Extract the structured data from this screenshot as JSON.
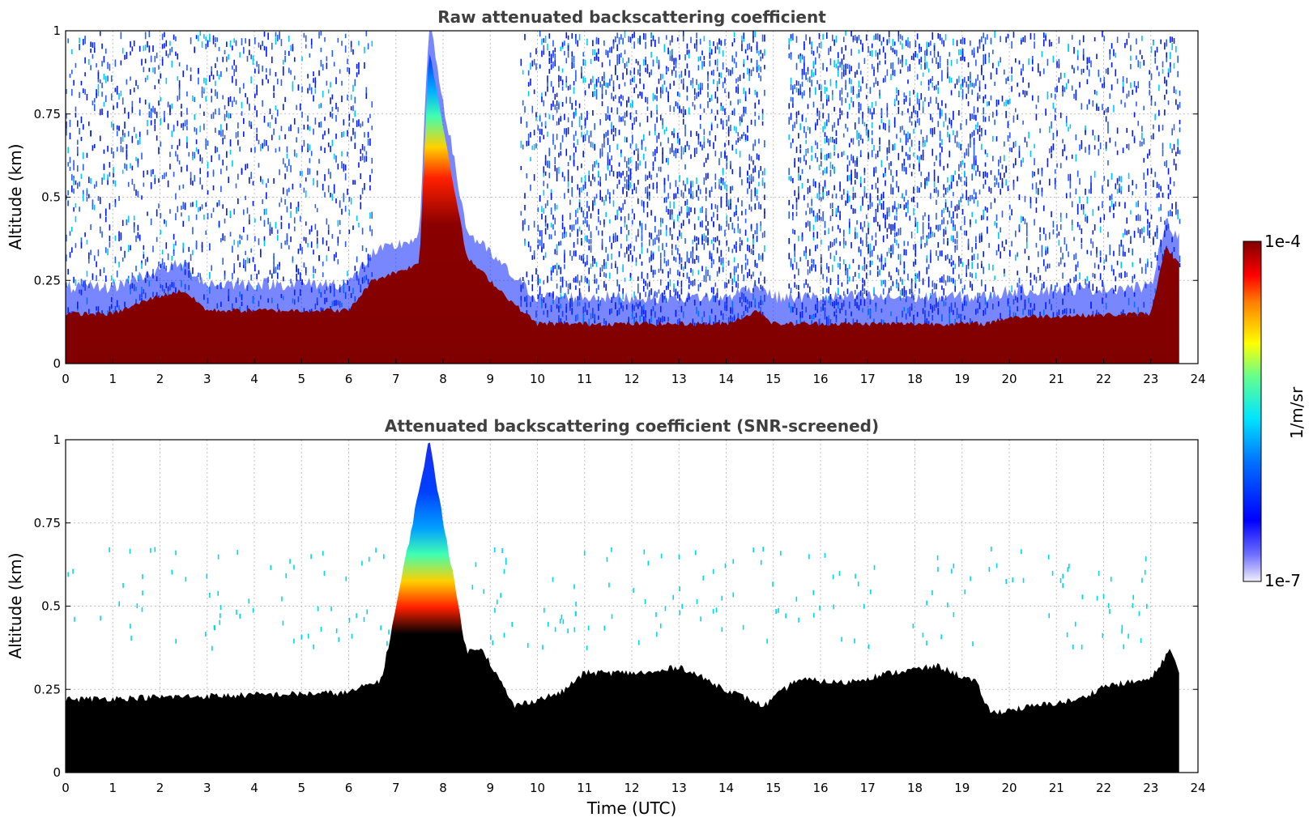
{
  "chart_data": [
    {
      "type": "heatmap",
      "title": "Raw attenuated backscattering coefficient",
      "xlabel": "",
      "ylabel": "Altitude (km)",
      "xlim": [
        0,
        24
      ],
      "ylim": [
        0,
        1
      ],
      "xticks": [
        "0",
        "1",
        "2",
        "3",
        "4",
        "5",
        "6",
        "7",
        "8",
        "9",
        "10",
        "11",
        "12",
        "13",
        "14",
        "15",
        "16",
        "17",
        "18",
        "19",
        "20",
        "21",
        "22",
        "23",
        "24"
      ],
      "yticks": [
        "0",
        "0.25",
        "0.5",
        "0.75",
        "1"
      ],
      "grid": true,
      "data_end_hour": 23.6,
      "boundary_layer_top_km": [
        [
          0,
          0.15
        ],
        [
          1.0,
          0.15
        ],
        [
          1.9,
          0.2
        ],
        [
          2.5,
          0.22
        ],
        [
          3.0,
          0.16
        ],
        [
          6.0,
          0.16
        ],
        [
          6.5,
          0.25
        ],
        [
          7.5,
          0.3
        ],
        [
          7.7,
          0.95
        ],
        [
          8.5,
          0.32
        ],
        [
          9.5,
          0.18
        ],
        [
          10,
          0.12
        ],
        [
          14.0,
          0.12
        ],
        [
          14.7,
          0.16
        ],
        [
          15.0,
          0.12
        ],
        [
          19.5,
          0.12
        ],
        [
          20,
          0.14
        ],
        [
          23.0,
          0.15
        ],
        [
          23.3,
          0.35
        ],
        [
          23.6,
          0.3
        ]
      ],
      "noise_free_windows_hours": [
        [
          6.5,
          9.6
        ],
        [
          14.8,
          15.3
        ]
      ],
      "colorbar": {
        "min_label": "1e-7",
        "max_label": "1e-4",
        "label": "1/m/sr",
        "scale": "log"
      }
    },
    {
      "type": "heatmap",
      "title": "Attenuated backscattering coefficient (SNR-screened)",
      "xlabel": "Time (UTC)",
      "ylabel": "Altitude (km)",
      "xlim": [
        0,
        24
      ],
      "ylim": [
        0,
        1
      ],
      "xticks": [
        "0",
        "1",
        "2",
        "3",
        "4",
        "5",
        "6",
        "7",
        "8",
        "9",
        "10",
        "11",
        "12",
        "13",
        "14",
        "15",
        "16",
        "17",
        "18",
        "19",
        "20",
        "21",
        "22",
        "23",
        "24"
      ],
      "yticks": [
        "0",
        "0.25",
        "0.5",
        "0.75",
        "1"
      ],
      "grid": true,
      "data_end_hour": 23.6,
      "screened_layer_top_km": [
        [
          0,
          0.22
        ],
        [
          6.0,
          0.24
        ],
        [
          6.7,
          0.28
        ],
        [
          7.7,
          1.0
        ],
        [
          8.5,
          0.36
        ],
        [
          8.8,
          0.38
        ],
        [
          9.5,
          0.2
        ],
        [
          10.5,
          0.24
        ],
        [
          11.0,
          0.3
        ],
        [
          12.5,
          0.3
        ],
        [
          13.0,
          0.32
        ],
        [
          14.0,
          0.25
        ],
        [
          14.8,
          0.2
        ],
        [
          15.5,
          0.28
        ],
        [
          16.5,
          0.27
        ],
        [
          17.5,
          0.3
        ],
        [
          18.5,
          0.32
        ],
        [
          19.3,
          0.27
        ],
        [
          19.6,
          0.18
        ],
        [
          21.5,
          0.22
        ],
        [
          22.0,
          0.26
        ],
        [
          23.0,
          0.28
        ],
        [
          23.4,
          0.37
        ],
        [
          23.6,
          0.3
        ]
      ],
      "colorbar": {
        "min_label": "1e-7",
        "max_label": "1e-4",
        "label": "1/m/sr",
        "scale": "log"
      }
    }
  ],
  "colormap_stops": [
    "#f0eefa",
    "#0000ff",
    "#00e5ff",
    "#ffff00",
    "#ff0000",
    "#800000"
  ],
  "colors": {
    "below_range": "#000000",
    "gridline": "#c0c0c0",
    "title_text": "#404040"
  }
}
